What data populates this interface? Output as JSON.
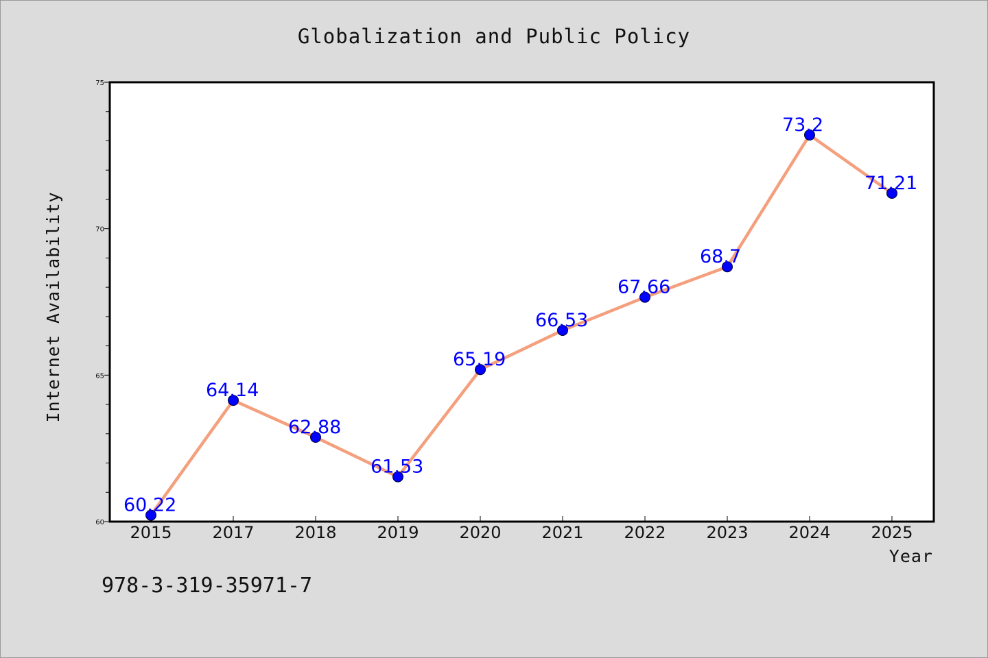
{
  "chart_data": {
    "type": "line",
    "title": "Globalization and Public Policy",
    "xlabel": "Year",
    "ylabel": "Internet Availability",
    "categories": [
      "2015",
      "2017",
      "2018",
      "2019",
      "2020",
      "2021",
      "2022",
      "2023",
      "2024",
      "2025"
    ],
    "series": [
      {
        "values": [
          60.22,
          64.14,
          62.88,
          61.53,
          65.19,
          66.53,
          67.66,
          68.7,
          73.2,
          71.21
        ],
        "data_labels": [
          "60.22",
          "64.14",
          "62.88",
          "61.53",
          "65.19",
          "66.53",
          "67.66",
          "68.7",
          "73.2",
          "71.21"
        ],
        "line_color": "#f4a07e",
        "marker_color": "#0000ff",
        "label_color": "#0000ff"
      }
    ],
    "ylim": [
      60,
      75
    ],
    "yticks": [
      "60",
      "65",
      "70",
      "75"
    ],
    "grid": false,
    "legend": "none"
  },
  "footer": {
    "isbn": "978-3-319-35971-7"
  },
  "colors": {
    "background": "#dcdcdc",
    "plot_background": "#ffffff",
    "axis": "#000000"
  }
}
